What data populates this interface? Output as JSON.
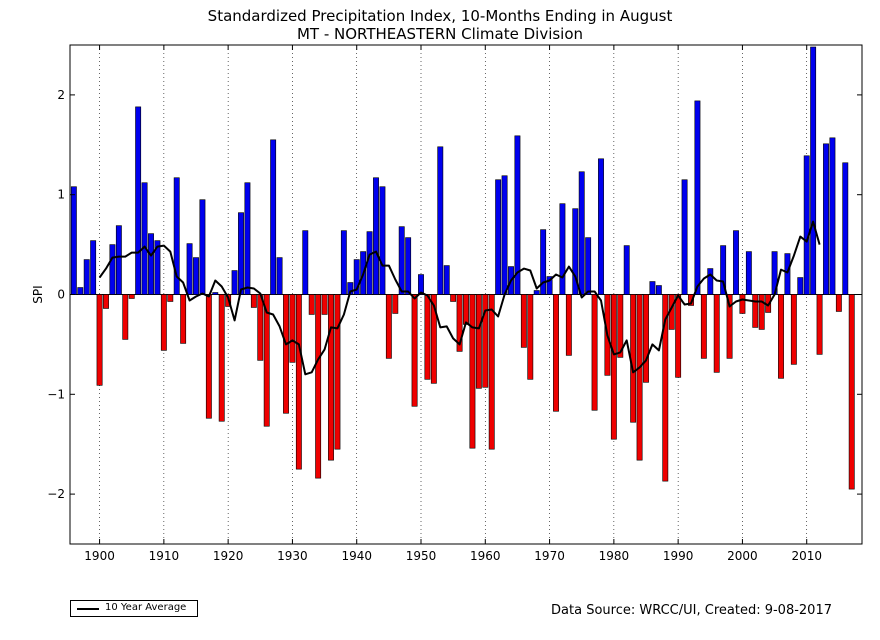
{
  "chart_data": {
    "type": "bar",
    "title": "Standardized Precipitation Index, 10-Months Ending in August",
    "subtitle": "MT - NORTHEASTERN Climate Division",
    "ylabel": "SPI",
    "xlabel": "",
    "xlim": [
      1895.4,
      2018.6
    ],
    "ylim": [
      -2.5,
      2.5
    ],
    "xticks": [
      1900,
      1910,
      1920,
      1930,
      1940,
      1950,
      1960,
      1970,
      1980,
      1990,
      2000,
      2010
    ],
    "yticks": [
      -2,
      -1,
      0,
      1,
      2
    ],
    "ytick_labels": [
      "−2",
      "−1",
      "0",
      "1",
      "2"
    ],
    "grid": "dotted vertical at decades",
    "legend_position": "bottom-left",
    "positive_color": "#0000ee",
    "negative_color": "#ee0000",
    "years": [
      1896,
      1897,
      1898,
      1899,
      1900,
      1901,
      1902,
      1903,
      1904,
      1905,
      1906,
      1907,
      1908,
      1909,
      1910,
      1911,
      1912,
      1913,
      1914,
      1915,
      1916,
      1917,
      1918,
      1919,
      1920,
      1921,
      1922,
      1923,
      1924,
      1925,
      1926,
      1927,
      1928,
      1929,
      1930,
      1931,
      1932,
      1933,
      1934,
      1935,
      1936,
      1937,
      1938,
      1939,
      1940,
      1941,
      1942,
      1943,
      1944,
      1945,
      1946,
      1947,
      1948,
      1949,
      1950,
      1951,
      1952,
      1953,
      1954,
      1955,
      1956,
      1957,
      1958,
      1959,
      1960,
      1961,
      1962,
      1963,
      1964,
      1965,
      1966,
      1967,
      1968,
      1969,
      1970,
      1971,
      1972,
      1973,
      1974,
      1975,
      1976,
      1977,
      1978,
      1979,
      1980,
      1981,
      1982,
      1983,
      1984,
      1985,
      1986,
      1987,
      1988,
      1989,
      1990,
      1991,
      1992,
      1993,
      1994,
      1995,
      1996,
      1997,
      1998,
      1999,
      2000,
      2001,
      2002,
      2003,
      2004,
      2005,
      2006,
      2007,
      2008,
      2009,
      2010,
      2011,
      2012,
      2013,
      2014,
      2015,
      2016,
      2017
    ],
    "values": [
      1.08,
      0.07,
      0.35,
      0.54,
      -0.91,
      -0.14,
      0.5,
      0.69,
      -0.45,
      -0.04,
      1.88,
      1.12,
      0.61,
      0.54,
      -0.56,
      -0.07,
      1.17,
      -0.49,
      0.51,
      0.37,
      0.95,
      -1.24,
      0.02,
      -1.27,
      -0.12,
      0.24,
      0.82,
      1.12,
      -0.13,
      -0.66,
      -1.32,
      1.55,
      0.37,
      -1.19,
      -0.68,
      -1.75,
      0.64,
      -0.2,
      -1.84,
      -0.2,
      -1.66,
      -1.55,
      0.64,
      0.12,
      0.35,
      0.43,
      0.63,
      1.17,
      1.08,
      -0.64,
      -0.19,
      0.68,
      0.57,
      -1.12,
      0.2,
      -0.85,
      -0.89,
      1.48,
      0.29,
      -0.07,
      -0.57,
      -0.3,
      -1.54,
      -0.94,
      -0.93,
      -1.55,
      1.15,
      1.19,
      0.28,
      1.59,
      -0.53,
      -0.85,
      0.04,
      0.65,
      0.18,
      -1.17,
      0.91,
      -0.61,
      0.86,
      1.23,
      0.57,
      -1.16,
      1.36,
      -0.81,
      -1.45,
      -0.63,
      0.49,
      -1.28,
      -1.66,
      -0.88,
      0.13,
      0.09,
      -1.87,
      -0.35,
      -0.83,
      1.15,
      -0.11,
      1.94,
      -0.64,
      0.26,
      -0.78,
      0.49,
      -0.64,
      0.64,
      -0.19,
      0.43,
      -0.33,
      -0.35,
      -0.18,
      0.43,
      -0.84,
      0.41,
      -0.7,
      0.17,
      1.39,
      2.48,
      -0.6,
      1.51,
      1.57,
      -0.17,
      1.32,
      -1.95
    ],
    "series": [
      {
        "name": "10 Year Average",
        "x": [
          1900,
          1901,
          1902,
          1903,
          1904,
          1905,
          1906,
          1907,
          1908,
          1909,
          1910,
          1911,
          1912,
          1913,
          1914,
          1915,
          1916,
          1917,
          1918,
          1919,
          1920,
          1921,
          1922,
          1923,
          1924,
          1925,
          1926,
          1927,
          1928,
          1929,
          1930,
          1931,
          1932,
          1933,
          1934,
          1935,
          1936,
          1937,
          1938,
          1939,
          1940,
          1941,
          1942,
          1943,
          1944,
          1945,
          1946,
          1947,
          1948,
          1949,
          1950,
          1951,
          1952,
          1953,
          1954,
          1955,
          1956,
          1957,
          1958,
          1959,
          1960,
          1961,
          1962,
          1963,
          1964,
          1965,
          1966,
          1967,
          1968,
          1969,
          1970,
          1971,
          1972,
          1973,
          1974,
          1975,
          1976,
          1977,
          1978,
          1979,
          1980,
          1981,
          1982,
          1983,
          1984,
          1985,
          1986,
          1987,
          1988,
          1989,
          1990,
          1991,
          1992,
          1993,
          1994,
          1995,
          1996,
          1997,
          1998,
          1999,
          2000,
          2001,
          2002,
          2003,
          2004,
          2005,
          2006,
          2007,
          2008,
          2009,
          2010,
          2011,
          2012
        ],
        "y": [
          0.17,
          0.26,
          0.37,
          0.38,
          0.38,
          0.42,
          0.42,
          0.48,
          0.39,
          0.48,
          0.49,
          0.43,
          0.18,
          0.12,
          -0.06,
          -0.02,
          0.01,
          -0.02,
          0.14,
          0.08,
          -0.03,
          -0.26,
          0.05,
          0.07,
          0.06,
          0.01,
          -0.18,
          -0.2,
          -0.32,
          -0.5,
          -0.46,
          -0.5,
          -0.8,
          -0.78,
          -0.65,
          -0.55,
          -0.33,
          -0.34,
          -0.2,
          0.03,
          0.05,
          0.2,
          0.4,
          0.43,
          0.29,
          0.29,
          0.15,
          0.03,
          0.03,
          -0.04,
          0.02,
          -0.01,
          -0.11,
          -0.33,
          -0.32,
          -0.44,
          -0.5,
          -0.28,
          -0.33,
          -0.34,
          -0.16,
          -0.15,
          -0.22,
          0.0,
          0.14,
          0.22,
          0.26,
          0.24,
          0.06,
          0.12,
          0.14,
          0.2,
          0.17,
          0.28,
          0.18,
          -0.03,
          0.03,
          0.03,
          -0.06,
          -0.41,
          -0.6,
          -0.58,
          -0.46,
          -0.78,
          -0.73,
          -0.66,
          -0.5,
          -0.56,
          -0.25,
          -0.13,
          -0.01,
          -0.1,
          -0.09,
          0.08,
          0.16,
          0.2,
          0.14,
          0.13,
          -0.12,
          -0.07,
          -0.05,
          -0.06,
          -0.07,
          -0.07,
          -0.11,
          0.0,
          0.25,
          0.22,
          0.39,
          0.58,
          0.53,
          0.73,
          0.5
        ]
      }
    ]
  },
  "legend": {
    "label": "10 Year Average"
  },
  "footer": {
    "source": "Data Source: WRCC/UI, Created: 9-08-2017"
  }
}
